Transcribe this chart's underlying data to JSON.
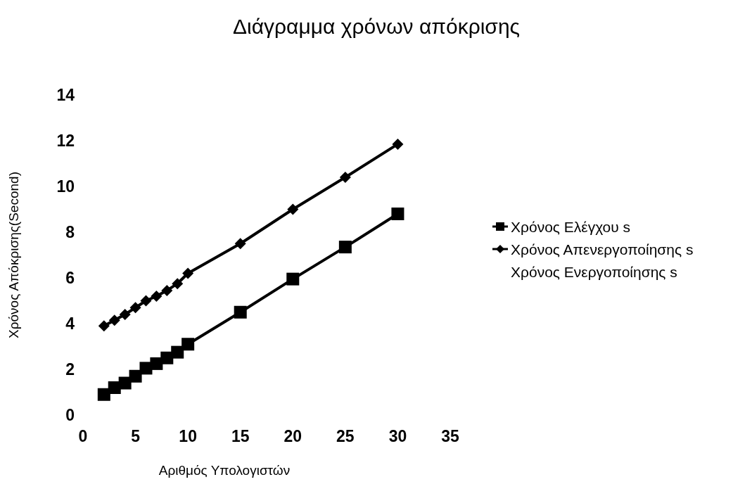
{
  "chart_data": {
    "type": "line",
    "title": "Διάγραμμα χρόνων απόκρισης",
    "xlabel": "Αριθμός Υπολογιστών",
    "ylabel": "Χρόνος Απόκρισης(Second)",
    "x": [
      2,
      3,
      4,
      5,
      6,
      7,
      8,
      9,
      10,
      15,
      20,
      25,
      30
    ],
    "series": [
      {
        "name": "Χρόνος Ελέγχου s",
        "color": "#000000",
        "marker": "square",
        "values": [
          0.9,
          1.2,
          1.4,
          1.7,
          2.05,
          2.25,
          2.5,
          2.75,
          3.1,
          4.5,
          5.95,
          7.35,
          8.8
        ]
      },
      {
        "name": "Χρόνος Απενεργοποίησης s",
        "color": "#000000",
        "marker": "diamond",
        "values": [
          3.9,
          4.15,
          4.4,
          4.7,
          5.0,
          5.2,
          5.45,
          5.75,
          6.2,
          7.5,
          9.0,
          10.4,
          11.85
        ]
      },
      {
        "name": "Χρόνος Ενεργοποίησης s",
        "marker": "none",
        "values": [
          null,
          null,
          null,
          null,
          null,
          null,
          null,
          null,
          null,
          null,
          null,
          null,
          null
        ]
      }
    ],
    "xlim": [
      0,
      35
    ],
    "xticks": [
      0,
      5,
      10,
      15,
      20,
      25,
      30,
      35
    ],
    "ylim": [
      0,
      14
    ],
    "yticks": [
      0,
      2,
      4,
      6,
      8,
      10,
      12,
      14
    ],
    "grid": false,
    "legend": "right",
    "line_style": "solid"
  }
}
